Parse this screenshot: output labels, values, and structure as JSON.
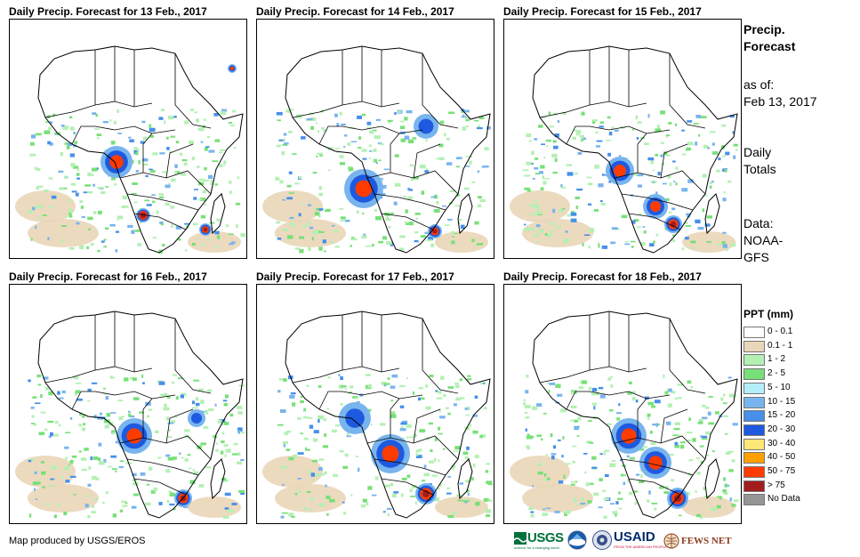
{
  "panels": [
    {
      "title": "Daily Precip. Forecast for 13 Feb., 2017"
    },
    {
      "title": "Daily Precip. Forecast for 14 Feb., 2017"
    },
    {
      "title": "Daily Precip. Forecast for 15 Feb., 2017"
    },
    {
      "title": "Daily Precip. Forecast for 16 Feb., 2017"
    },
    {
      "title": "Daily Precip. Forecast for 17 Feb., 2017"
    },
    {
      "title": "Daily Precip. Forecast for 18 Feb., 2017"
    }
  ],
  "side": {
    "title_line1": "Precip.",
    "title_line2": "Forecast",
    "asof_label": "as of:",
    "asof_date": "Feb 13, 2017",
    "totals_line1": "Daily",
    "totals_line2": "Totals",
    "data_label": "Data:",
    "data_line1": "NOAA-",
    "data_line2": "GFS"
  },
  "legend": {
    "title": "PPT (mm)",
    "items": [
      {
        "label": "0 - 0.1",
        "color": "#ffffff"
      },
      {
        "label": "0.1 - 1",
        "color": "#ead6b8"
      },
      {
        "label": "1 - 2",
        "color": "#b4f0b4"
      },
      {
        "label": "2 - 5",
        "color": "#78e078"
      },
      {
        "label": "5 - 10",
        "color": "#b4eef8"
      },
      {
        "label": "10 - 15",
        "color": "#78b4ee"
      },
      {
        "label": "15 - 20",
        "color": "#4690ea"
      },
      {
        "label": "20 - 30",
        "color": "#1e5ae0"
      },
      {
        "label": "30 - 40",
        "color": "#ffe678"
      },
      {
        "label": "40 - 50",
        "color": "#ffa000"
      },
      {
        "label": "50 - 75",
        "color": "#ff3c00"
      },
      {
        "label": "> 75",
        "color": "#a01e1e"
      },
      {
        "label": "No Data",
        "color": "#969696"
      }
    ]
  },
  "footer": "Map produced by USGS/EROS",
  "logos": {
    "usgs": "USGS",
    "usgs_tag": "science for a changing world",
    "usaid": "USAID",
    "usaid_tag": "FROM THE AMERICAN PEOPLE",
    "fewsnet": "FEWS NET"
  }
}
